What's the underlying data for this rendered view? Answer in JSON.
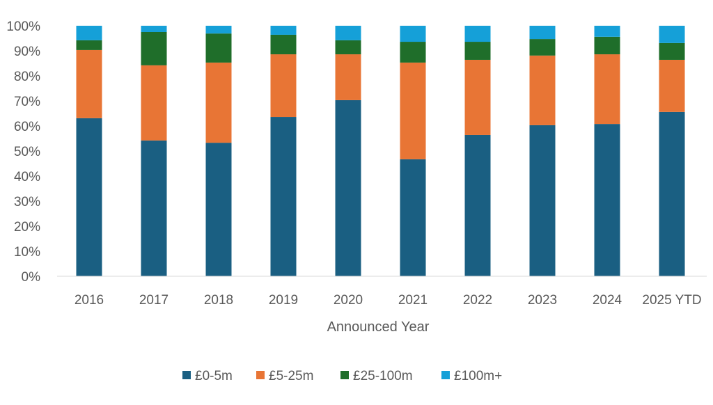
{
  "chart_data": {
    "type": "bar",
    "stacked": true,
    "normalized": true,
    "title": "",
    "xlabel": "Announced Year",
    "ylabel": "",
    "ylim": [
      0,
      100
    ],
    "yticks": [
      "0%",
      "10%",
      "20%",
      "30%",
      "40%",
      "50%",
      "60%",
      "70%",
      "80%",
      "90%",
      "100%"
    ],
    "grid": false,
    "legend_position": "bottom",
    "categories": [
      "2016",
      "2017",
      "2018",
      "2019",
      "2020",
      "2021",
      "2022",
      "2023",
      "2024",
      "2025 YTD"
    ],
    "series": [
      {
        "name": "£0-5m",
        "color": "#1a5f82",
        "values": [
          63.1,
          54.2,
          53.3,
          63.6,
          70.3,
          46.7,
          56.4,
          60.3,
          60.8,
          65.6
        ]
      },
      {
        "name": "£5-25m",
        "color": "#e87535",
        "values": [
          27.2,
          30.0,
          32.0,
          25.0,
          18.3,
          38.6,
          30.0,
          27.8,
          27.8,
          20.8
        ]
      },
      {
        "name": "£25-100m",
        "color": "#1f6e2a",
        "values": [
          3.9,
          13.3,
          11.6,
          7.8,
          5.6,
          8.3,
          7.2,
          6.6,
          7.0,
          6.7
        ]
      },
      {
        "name": "£100m+",
        "color": "#15a0d8",
        "values": [
          5.8,
          2.5,
          3.1,
          3.6,
          5.8,
          6.4,
          6.4,
          5.3,
          4.4,
          6.9
        ]
      }
    ]
  }
}
